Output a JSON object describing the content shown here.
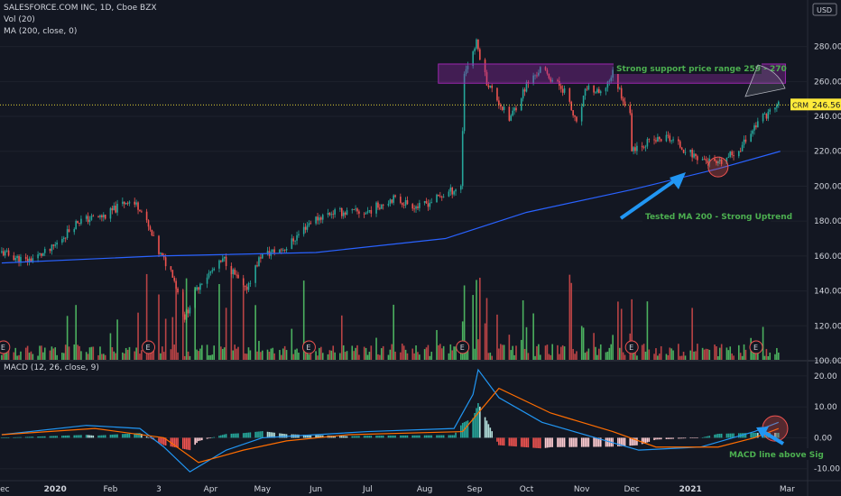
{
  "header": {
    "symbol_line": "SALESFORCE.COM INC, 1D, Cboe BZX",
    "vol_line": "Vol (20)",
    "ma_line": "MA (200, close, 0)",
    "macd_line": "MACD (12, 26, close, 9)",
    "currency": "USD"
  },
  "chart_data": {
    "type": "candlestick",
    "symbol": "CRM",
    "last_price": "246.56",
    "price_axis": {
      "ticks": [
        "280.00",
        "260.00",
        "240.00",
        "220.00",
        "200.00",
        "180.00",
        "160.00",
        "140.00",
        "120.00",
        "100.00"
      ],
      "range": [
        100,
        286
      ]
    },
    "macd_axis": {
      "ticks": [
        "20.00",
        "10.00",
        "0.00",
        "-10.00"
      ],
      "range": [
        -13,
        22
      ]
    },
    "x_labels": [
      "Dec",
      "2020",
      "Feb",
      "3",
      "Apr",
      "May",
      "Jun",
      "Jul",
      "Aug",
      "Sep",
      "Oct",
      "Nov",
      "Dec",
      "2021",
      "Mar"
    ],
    "x_label_dates": [
      "2019-12-02",
      "2020-01-02",
      "2020-02-03",
      "2020-03-02",
      "2020-04-01",
      "2020-05-01",
      "2020-06-01",
      "2020-07-01",
      "2020-08-03",
      "2020-09-01",
      "2020-10-01",
      "2020-11-02",
      "2020-12-01",
      "2021-01-04",
      "2021-03-01"
    ],
    "date_range": [
      "2019-12-01",
      "2021-03-05"
    ],
    "price_path": [
      [
        "2019-12-02",
        162
      ],
      [
        "2019-12-16",
        157
      ],
      [
        "2019-12-30",
        163
      ],
      [
        "2020-01-15",
        180
      ],
      [
        "2020-01-31",
        183
      ],
      [
        "2020-02-13",
        192
      ],
      [
        "2020-02-20",
        188
      ],
      [
        "2020-03-02",
        162
      ],
      [
        "2020-03-10",
        150
      ],
      [
        "2020-03-17",
        125
      ],
      [
        "2020-03-26",
        145
      ],
      [
        "2020-04-09",
        158
      ],
      [
        "2020-04-21",
        140
      ],
      [
        "2020-04-30",
        160
      ],
      [
        "2020-05-15",
        165
      ],
      [
        "2020-05-29",
        180
      ],
      [
        "2020-06-10",
        185
      ],
      [
        "2020-06-30",
        185
      ],
      [
        "2020-07-15",
        193
      ],
      [
        "2020-07-31",
        188
      ],
      [
        "2020-08-14",
        195
      ],
      [
        "2020-08-24",
        200
      ],
      [
        "2020-08-26",
        265
      ],
      [
        "2020-09-02",
        282
      ],
      [
        "2020-09-08",
        260
      ],
      [
        "2020-09-21",
        238
      ],
      [
        "2020-10-01",
        258
      ],
      [
        "2020-10-09",
        267
      ],
      [
        "2020-10-23",
        255
      ],
      [
        "2020-10-30",
        235
      ],
      [
        "2020-11-05",
        257
      ],
      [
        "2020-11-13",
        252
      ],
      [
        "2020-11-20",
        265
      ],
      [
        "2020-11-30",
        240
      ],
      [
        "2020-12-01",
        222
      ],
      [
        "2020-12-10",
        225
      ],
      [
        "2020-12-22",
        228
      ],
      [
        "2021-01-05",
        218
      ],
      [
        "2021-01-20",
        212
      ],
      [
        "2021-02-02",
        222
      ],
      [
        "2021-02-12",
        237
      ],
      [
        "2021-02-24",
        247
      ]
    ],
    "series": [
      {
        "name": "MA (200, close, 0)",
        "color": "#2962ff",
        "points": [
          [
            "2019-12-02",
            156
          ],
          [
            "2020-03-01",
            160
          ],
          [
            "2020-06-01",
            162
          ],
          [
            "2020-08-15",
            170
          ],
          [
            "2020-10-01",
            185
          ],
          [
            "2020-12-01",
            198
          ],
          [
            "2021-01-20",
            210
          ],
          [
            "2021-02-25",
            220
          ]
        ]
      },
      {
        "name": "MACD",
        "color": "#2196f3",
        "points": [
          [
            "2019-12-02",
            1
          ],
          [
            "2020-01-20",
            4
          ],
          [
            "2020-02-20",
            3
          ],
          [
            "2020-03-05",
            -3
          ],
          [
            "2020-03-20",
            -11
          ],
          [
            "2020-04-10",
            -4
          ],
          [
            "2020-05-01",
            0
          ],
          [
            "2020-06-01",
            1
          ],
          [
            "2020-07-01",
            2
          ],
          [
            "2020-08-20",
            3
          ],
          [
            "2020-08-31",
            14
          ],
          [
            "2020-09-03",
            22
          ],
          [
            "2020-09-15",
            13
          ],
          [
            "2020-10-10",
            5
          ],
          [
            "2020-11-10",
            0
          ],
          [
            "2020-12-05",
            -4
          ],
          [
            "2021-01-10",
            -3
          ],
          [
            "2021-02-10",
            2
          ],
          [
            "2021-02-24",
            5
          ]
        ]
      },
      {
        "name": "Signal",
        "color": "#ff6d00",
        "points": [
          [
            "2019-12-02",
            1
          ],
          [
            "2020-01-25",
            3
          ],
          [
            "2020-03-05",
            0
          ],
          [
            "2020-03-25",
            -8
          ],
          [
            "2020-04-20",
            -4
          ],
          [
            "2020-05-15",
            -1
          ],
          [
            "2020-06-20",
            1
          ],
          [
            "2020-08-25",
            2
          ],
          [
            "2020-09-15",
            16
          ],
          [
            "2020-10-15",
            8
          ],
          [
            "2020-11-20",
            2
          ],
          [
            "2020-12-15",
            -3
          ],
          [
            "2021-01-20",
            -3
          ],
          [
            "2021-02-10",
            0
          ],
          [
            "2021-02-24",
            3
          ]
        ]
      }
    ],
    "earnings_markers": [
      {
        "date": "2019-12-03",
        "label": "E"
      },
      {
        "date": "2020-02-25",
        "label": "E"
      },
      {
        "date": "2020-05-28",
        "label": "E"
      },
      {
        "date": "2020-08-25",
        "label": "E"
      },
      {
        "date": "2020-12-01",
        "label": "E"
      },
      {
        "date": "2021-02-25",
        "label": "E"
      }
    ],
    "annotations": [
      {
        "text": "Strong support price range 259 - 270",
        "price_low": 259,
        "price_high": 270,
        "from": "2020-08-24",
        "to": "2021-02-28"
      },
      {
        "text": "Tested MA 200 - Strong Uptrend",
        "date": "2021-01-20",
        "price": 211
      },
      {
        "text": "MACD line above Sig",
        "date": "2021-02-22",
        "macd": 3
      }
    ],
    "colors": {
      "up": "#26a69a",
      "down": "#ef5350",
      "vol_up": "#56cb6a",
      "vol_down": "#d74b4b",
      "support_box": "#9c27b0",
      "annotation_text": "#4caf50",
      "arrow": "#2196f3",
      "last_price_label": "#ffeb3b"
    }
  }
}
